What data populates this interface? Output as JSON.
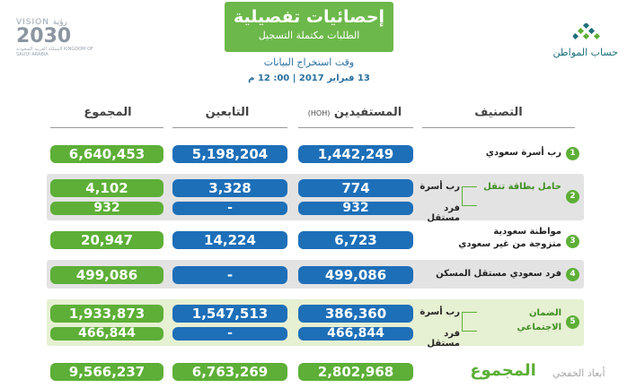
{
  "header": {
    "title": "إحصائيات تفصيلية",
    "subtitle": "الطلبات مكتملة التسجيل",
    "extract_label": "وقت استخراج البيانات",
    "extract_date": "13 فبراير 2017 | 00: 12 م"
  },
  "vision": {
    "line1": "VISION رؤية",
    "line2": "2030",
    "line3": "المملكة العربية السعودية KINGDOM OF SAUDI ARABIA"
  },
  "logo": {
    "name": "حساب المواطن"
  },
  "columns": {
    "total": "المجموع",
    "dependents": "التابعين",
    "beneficiaries": "المستفيدين",
    "hoh": "(HOH)",
    "classification": "التصنيف"
  },
  "rows": [
    {
      "number": "1",
      "label": "رب أسرة سعودي",
      "total": "6,640,453",
      "dependents": "5,198,204",
      "beneficiaries": "1,442,249"
    },
    {
      "number": "2",
      "label_main": "حامل بطاقة تنقل",
      "sub1_label": "رب أسرة",
      "sub2_label": "فرد مستقل",
      "sub1": {
        "total": "4,102",
        "dependents": "3,328",
        "beneficiaries": "774"
      },
      "sub2": {
        "total": "932",
        "dependents": "-",
        "beneficiaries": "932"
      }
    },
    {
      "number": "3",
      "label_line1": "مواطنة سعودية",
      "label_line2": "متزوجة من غير سعودي",
      "total": "20,947",
      "dependents": "14,224",
      "beneficiaries": "6,723"
    },
    {
      "number": "4",
      "label": "فرد سعودي مستقل المسكن",
      "total": "499,086",
      "dependents": "-",
      "beneficiaries": "499,086"
    },
    {
      "number": "5",
      "label_line1": "الضمان",
      "label_line2": "الاجتماعي",
      "sub1_label": "رب أسرة",
      "sub2_label": "فرد مستقل",
      "sub1": {
        "total": "1,933,873",
        "dependents": "1,547,513",
        "beneficiaries": "386,360"
      },
      "sub2": {
        "total": "466,844",
        "dependents": "-",
        "beneficiaries": "466,844"
      }
    }
  ],
  "totals": {
    "label": "المجموع",
    "total": "9,566,237",
    "dependents": "6,763,269",
    "beneficiaries": "2,802,968"
  },
  "watermark": "أبعاد الخفجي",
  "colors": {
    "green": "#5daf37",
    "blue": "#1d6fb8",
    "header_green": "#6cb84a",
    "shaded_row": "#e3e3e3",
    "green_row": "#e6f0d2"
  }
}
